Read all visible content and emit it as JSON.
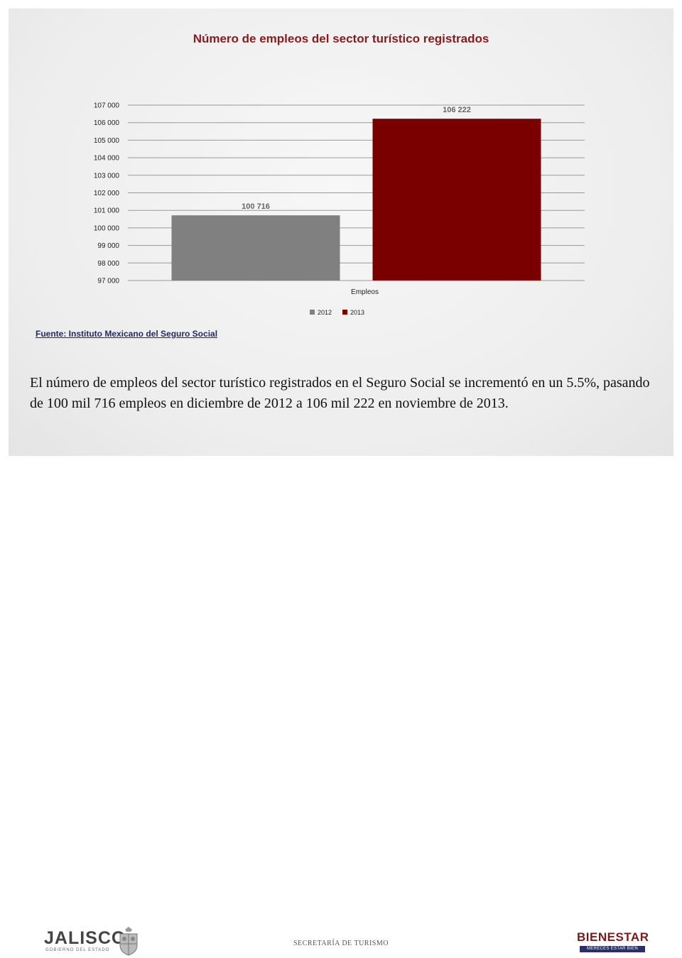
{
  "chart_data": {
    "type": "bar",
    "title": "Número de empleos del sector turístico registrados",
    "categories": [
      "Empleos"
    ],
    "series": [
      {
        "name": "2012",
        "values": [
          100716
        ],
        "label": "100 716",
        "color": "#808080"
      },
      {
        "name": "2013",
        "values": [
          106222
        ],
        "label": "106 222",
        "color": "#7a0000"
      }
    ],
    "ylim": [
      97000,
      107000
    ],
    "yticks": [
      97000,
      98000,
      99000,
      100000,
      101000,
      102000,
      103000,
      104000,
      105000,
      106000,
      107000
    ],
    "ytick_labels": [
      "97 000",
      "98 000",
      "99 000",
      "100 000",
      "101 000",
      "102 000",
      "103 000",
      "104 000",
      "105 000",
      "106 000",
      "107 000"
    ],
    "xlabel": "Empleos",
    "grid": true,
    "legend_position": "bottom"
  },
  "source_text": "Fuente: Instituto Mexicano del Seguro Social",
  "body_text": "El número de empleos del sector turístico registrados en el Seguro Social se incrementó en un 5.5%, pasando de 100 mil 716 empleos en diciembre de 2012 a 106 mil 222 en noviembre de 2013.",
  "footer": {
    "left_logo": "JALISCO",
    "left_logo_sub": "GOBIERNO DEL ESTADO",
    "center": "SECRETARÍA DE TURISMO",
    "right_logo": "BIENESTAR",
    "right_logo_sub": "MERECES ESTAR BIEN"
  }
}
